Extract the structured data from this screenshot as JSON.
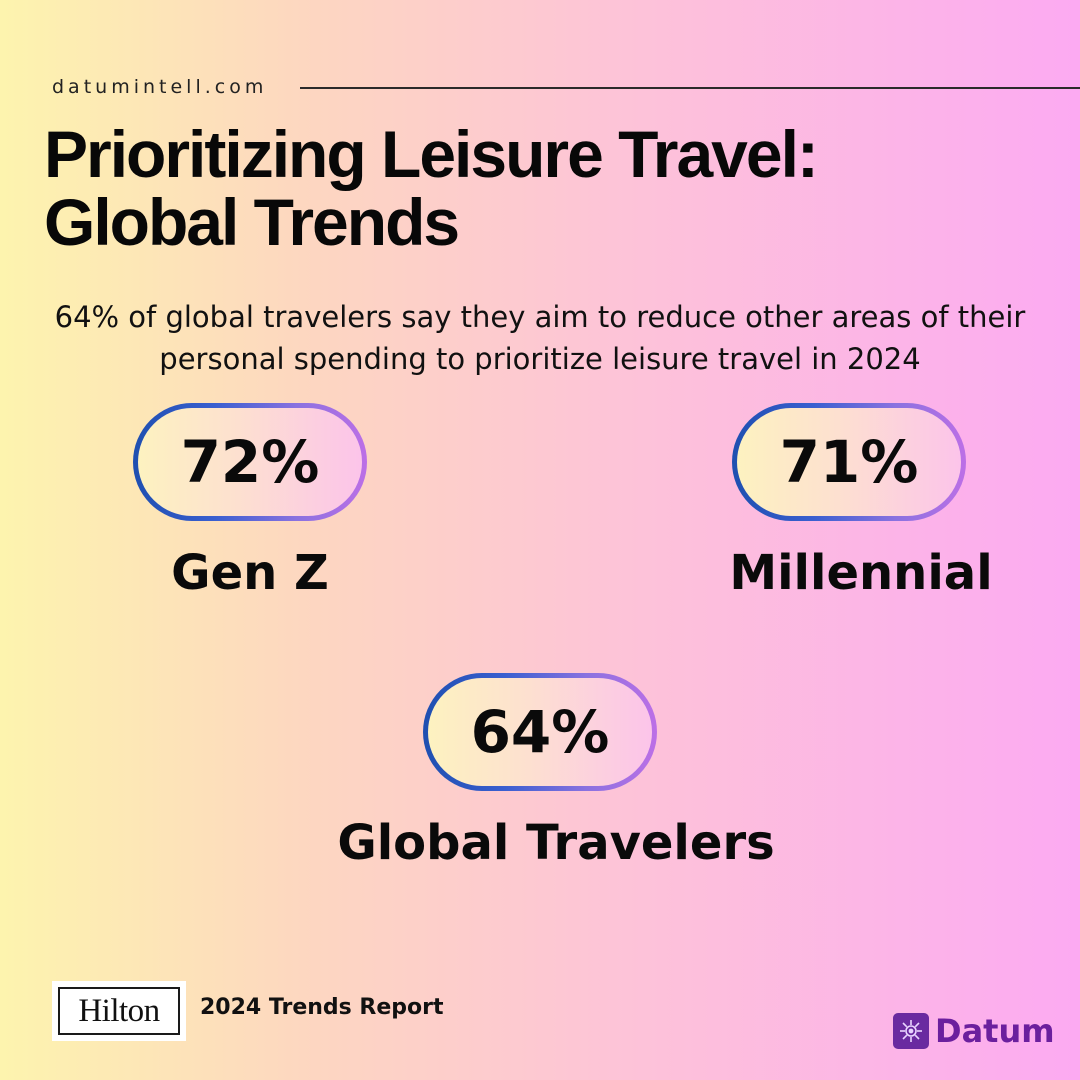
{
  "header": {
    "site": "datumintell.com",
    "title_line1": "Prioritizing Leisure Travel:",
    "title_line2": "Global Trends"
  },
  "subtitle": {
    "line1": "64% of global travelers say they aim to reduce other areas of their",
    "line2": "personal spending to prioritize leisure travel in 2024"
  },
  "stats": [
    {
      "value": "72%",
      "label": "Gen Z"
    },
    {
      "value": "71%",
      "label": "Millennial"
    },
    {
      "value": "64%",
      "label": "Global Travelers"
    }
  ],
  "footer": {
    "source_logo_text": "Hilton",
    "source": "2024 Trends Report",
    "brand": "Datum",
    "brand_icon": "gear-icon"
  },
  "colors": {
    "pill_border_start": "#1e4fb0",
    "pill_border_end": "#bc6fe6",
    "brand": "#6b1f9e"
  }
}
